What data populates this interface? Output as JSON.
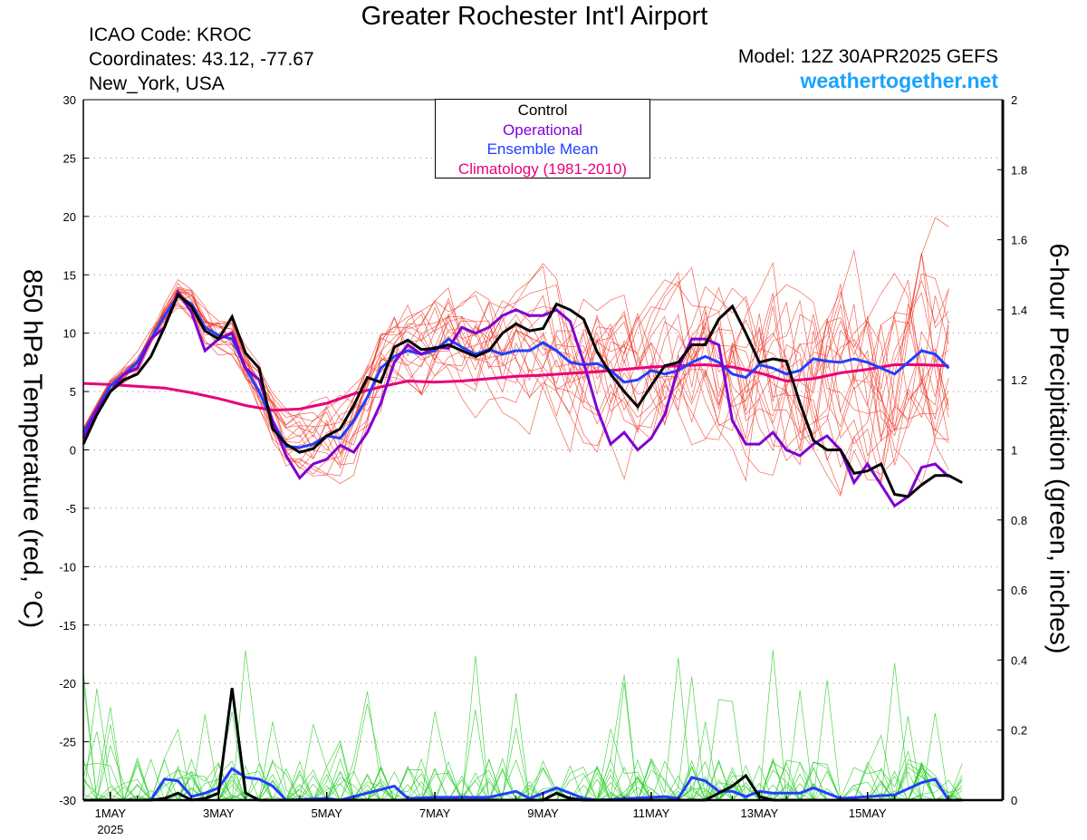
{
  "title": "Greater Rochester Int'l Airport",
  "station": {
    "icao": "ICAO Code: KROC",
    "coords": "Coordinates: 43.12, -77.67",
    "location": "New_York, USA"
  },
  "model": "Model: 12Z 30APR2025 GEFS",
  "website": "weathertogether.net",
  "colors": {
    "control": "#000000",
    "operational": "#8000d0",
    "mean": "#2040ff",
    "climatology": "#e8007a",
    "members_temp": "#ee3322",
    "members_precip": "#22cc22",
    "website": "#1aa3ff"
  },
  "chart_data": {
    "type": "line",
    "title": "Greater Rochester Int'l Airport",
    "ylabel_left": "850 hPa Temperature (red, °C)",
    "ylabel_right": "6-hour Precipitation (green, inches)",
    "ylim_left": [
      -30,
      30
    ],
    "ylim_right": [
      0,
      2
    ],
    "x_range_days": [
      -0.5,
      16.5
    ],
    "x_ticks": [
      {
        "day": 0,
        "label": "1MAY",
        "sublabel": "2025"
      },
      {
        "day": 2,
        "label": "3MAY"
      },
      {
        "day": 4,
        "label": "5MAY"
      },
      {
        "day": 6,
        "label": "7MAY"
      },
      {
        "day": 8,
        "label": "9MAY"
      },
      {
        "day": 10,
        "label": "11MAY"
      },
      {
        "day": 12,
        "label": "13MAY"
      },
      {
        "day": 14,
        "label": "15MAY"
      }
    ],
    "yticks_left": [
      30,
      25,
      20,
      15,
      10,
      5,
      0,
      -5,
      -10,
      -15,
      -20,
      -25,
      -30
    ],
    "yticks_right": [
      "2",
      "1.8",
      "1.6",
      "1.4",
      "1.2",
      "1",
      "0.8",
      "0.6",
      "0.4",
      "0.2",
      "0"
    ],
    "legend": {
      "position": "top-center",
      "entries": [
        {
          "label": "Control",
          "color": "#000000"
        },
        {
          "label": "Operational",
          "color": "#8000d0"
        },
        {
          "label": "Ensemble Mean",
          "color": "#2040ff"
        },
        {
          "label": "Climatology (1981-2010)",
          "color": "#e8007a"
        }
      ]
    },
    "grid": "dotted horizontal",
    "series_temp": {
      "control": [
        [
          -0.5,
          0.5
        ],
        [
          -0.25,
          3
        ],
        [
          0,
          5
        ],
        [
          0.25,
          6
        ],
        [
          0.5,
          6.5
        ],
        [
          0.75,
          8
        ],
        [
          1,
          10.5
        ],
        [
          1.25,
          13.3
        ],
        [
          1.5,
          12.3
        ],
        [
          1.75,
          10.2
        ],
        [
          2,
          9.5
        ],
        [
          2.25,
          11.4
        ],
        [
          2.5,
          8.3
        ],
        [
          2.75,
          7
        ],
        [
          3,
          1.8
        ],
        [
          3.25,
          0.5
        ],
        [
          3.5,
          -0.2
        ],
        [
          3.75,
          0.1
        ],
        [
          4,
          1.2
        ],
        [
          4.25,
          1.8
        ],
        [
          4.5,
          3.8
        ],
        [
          4.75,
          6.2
        ],
        [
          5,
          5.8
        ],
        [
          5.25,
          8.8
        ],
        [
          5.5,
          9.4
        ],
        [
          5.75,
          8.6
        ],
        [
          6,
          8.7
        ],
        [
          6.25,
          9
        ],
        [
          6.5,
          8.5
        ],
        [
          6.75,
          8
        ],
        [
          7,
          8.5
        ],
        [
          7.25,
          10
        ],
        [
          7.5,
          10.8
        ],
        [
          7.75,
          10.2
        ],
        [
          8,
          10.4
        ],
        [
          8.25,
          12.5
        ],
        [
          8.5,
          12
        ],
        [
          8.75,
          11.2
        ],
        [
          9,
          8.4
        ],
        [
          9.25,
          6.5
        ],
        [
          9.5,
          5
        ],
        [
          9.75,
          3.7
        ],
        [
          10,
          5.5
        ],
        [
          10.25,
          7.2
        ],
        [
          10.5,
          7.5
        ],
        [
          10.75,
          9
        ],
        [
          11,
          9
        ],
        [
          11.25,
          11.2
        ],
        [
          11.5,
          12.3
        ],
        [
          11.75,
          10
        ],
        [
          12,
          7.5
        ],
        [
          12.25,
          7.8
        ],
        [
          12.5,
          7.6
        ],
        [
          12.75,
          4
        ],
        [
          13,
          0.8
        ],
        [
          13.25,
          0
        ],
        [
          13.5,
          0
        ],
        [
          13.75,
          -2
        ],
        [
          14,
          -1.8
        ],
        [
          14.25,
          -1.2
        ],
        [
          14.5,
          -3.8
        ],
        [
          14.75,
          -4
        ],
        [
          15,
          -3
        ],
        [
          15.25,
          -2.2
        ],
        [
          15.5,
          -2.2
        ],
        [
          15.75,
          -2.8
        ]
      ],
      "operational": [
        [
          -0.5,
          1
        ],
        [
          -0.25,
          3.5
        ],
        [
          0,
          5
        ],
        [
          0.25,
          6.5
        ],
        [
          0.5,
          7
        ],
        [
          0.75,
          9.5
        ],
        [
          1,
          10.5
        ],
        [
          1.25,
          13.5
        ],
        [
          1.5,
          11.8
        ],
        [
          1.75,
          8.5
        ],
        [
          2,
          9.5
        ],
        [
          2.25,
          10
        ],
        [
          2.5,
          7
        ],
        [
          2.75,
          6
        ],
        [
          3,
          2.5
        ],
        [
          3.25,
          -0.5
        ],
        [
          3.5,
          -2.4
        ],
        [
          3.75,
          -1.2
        ],
        [
          4,
          -0.8
        ],
        [
          4.25,
          0.4
        ],
        [
          4.5,
          -0.2
        ],
        [
          4.75,
          1.5
        ],
        [
          5,
          4
        ],
        [
          5.25,
          7.5
        ],
        [
          5.5,
          9
        ],
        [
          5.75,
          8.2
        ],
        [
          6,
          8.8
        ],
        [
          6.25,
          8.7
        ],
        [
          6.5,
          10.5
        ],
        [
          6.75,
          10
        ],
        [
          7,
          10.5
        ],
        [
          7.25,
          11.5
        ],
        [
          7.5,
          12
        ],
        [
          7.75,
          11.5
        ],
        [
          8,
          11.5
        ],
        [
          8.25,
          12
        ],
        [
          8.5,
          11
        ],
        [
          8.75,
          7.5
        ],
        [
          9,
          3.5
        ],
        [
          9.25,
          0.5
        ],
        [
          9.5,
          1.5
        ],
        [
          9.75,
          0
        ],
        [
          10,
          1
        ],
        [
          10.25,
          3
        ],
        [
          10.5,
          7
        ],
        [
          10.75,
          9.5
        ],
        [
          11,
          9.5
        ],
        [
          11.25,
          9
        ],
        [
          11.5,
          2.5
        ],
        [
          11.75,
          0.5
        ],
        [
          12,
          0.5
        ],
        [
          12.25,
          1.5
        ],
        [
          12.5,
          0
        ],
        [
          12.75,
          -0.5
        ],
        [
          13,
          0.5
        ],
        [
          13.25,
          1.2
        ],
        [
          13.5,
          0
        ],
        [
          13.75,
          -2.8
        ],
        [
          14,
          -1.2
        ],
        [
          14.25,
          -3
        ],
        [
          14.5,
          -4.8
        ],
        [
          14.75,
          -4
        ],
        [
          15,
          -1.5
        ],
        [
          15.25,
          -1.2
        ],
        [
          15.5,
          -2.3
        ]
      ],
      "ensemble_mean": [
        [
          -0.5,
          1.5
        ],
        [
          -0.25,
          3.5
        ],
        [
          0,
          5.5
        ],
        [
          0.25,
          6.5
        ],
        [
          0.5,
          7.5
        ],
        [
          0.75,
          9.5
        ],
        [
          1,
          11.5
        ],
        [
          1.25,
          13.2
        ],
        [
          1.5,
          12.5
        ],
        [
          1.75,
          10.5
        ],
        [
          2,
          9.8
        ],
        [
          2.25,
          9.5
        ],
        [
          2.5,
          7
        ],
        [
          2.75,
          5
        ],
        [
          3,
          2.5
        ],
        [
          3.25,
          0.3
        ],
        [
          3.5,
          0.2
        ],
        [
          3.75,
          0.5
        ],
        [
          4,
          1.2
        ],
        [
          4.25,
          1
        ],
        [
          4.5,
          2.5
        ],
        [
          4.75,
          4.5
        ],
        [
          5,
          7
        ],
        [
          5.25,
          8
        ],
        [
          5.5,
          8.5
        ],
        [
          5.75,
          8.2
        ],
        [
          6,
          8.5
        ],
        [
          6.25,
          9.5
        ],
        [
          6.5,
          8.8
        ],
        [
          6.75,
          8.2
        ],
        [
          7,
          8.6
        ],
        [
          7.25,
          8.2
        ],
        [
          7.5,
          8.5
        ],
        [
          7.75,
          8.5
        ],
        [
          8,
          9.2
        ],
        [
          8.25,
          8.5
        ],
        [
          8.5,
          7.5
        ],
        [
          8.75,
          7.3
        ],
        [
          9,
          7.4
        ],
        [
          9.25,
          6.8
        ],
        [
          9.5,
          5.8
        ],
        [
          9.75,
          6
        ],
        [
          10,
          6.8
        ],
        [
          10.25,
          6.5
        ],
        [
          10.5,
          6.8
        ],
        [
          10.75,
          7.5
        ],
        [
          11,
          8
        ],
        [
          11.25,
          7.5
        ],
        [
          11.5,
          6.5
        ],
        [
          11.75,
          6.2
        ],
        [
          12,
          7.3
        ],
        [
          12.25,
          7
        ],
        [
          12.5,
          6.5
        ],
        [
          12.75,
          6.8
        ],
        [
          13,
          7.8
        ],
        [
          13.25,
          7.6
        ],
        [
          13.5,
          7.5
        ],
        [
          13.75,
          7.8
        ],
        [
          14,
          7.5
        ],
        [
          14.25,
          7
        ],
        [
          14.5,
          6.5
        ],
        [
          14.75,
          7.5
        ],
        [
          15,
          8.5
        ],
        [
          15.25,
          8.2
        ],
        [
          15.5,
          7
        ]
      ],
      "climatology": [
        [
          -0.5,
          5.7
        ],
        [
          0,
          5.6
        ],
        [
          1,
          5.3
        ],
        [
          1.5,
          4.9
        ],
        [
          2,
          4.4
        ],
        [
          2.5,
          3.8
        ],
        [
          3,
          3.4
        ],
        [
          3.5,
          3.5
        ],
        [
          4,
          4
        ],
        [
          4.5,
          4.8
        ],
        [
          5,
          5.4
        ],
        [
          5.5,
          5.9
        ],
        [
          6,
          5.8
        ],
        [
          6.5,
          5.9
        ],
        [
          7,
          6.1
        ],
        [
          7.5,
          6.3
        ],
        [
          8,
          6.4
        ],
        [
          9,
          6.7
        ],
        [
          9.5,
          6.9
        ],
        [
          10,
          7.1
        ],
        [
          10.5,
          7.2
        ],
        [
          11,
          7.3
        ],
        [
          11.5,
          7.1
        ],
        [
          12,
          6.6
        ],
        [
          12.5,
          5.9
        ],
        [
          13,
          6.1
        ],
        [
          13.5,
          6.6
        ],
        [
          14,
          6.9
        ],
        [
          14.5,
          7.3
        ],
        [
          15,
          7.3
        ],
        [
          15.5,
          7.2
        ]
      ]
    },
    "series_precip": {
      "control": [
        [
          -0.5,
          0
        ],
        [
          0.75,
          0
        ],
        [
          1,
          0.005
        ],
        [
          1.25,
          0.02
        ],
        [
          1.5,
          0
        ],
        [
          1.75,
          0.005
        ],
        [
          2,
          0.02
        ],
        [
          2.25,
          0.32
        ],
        [
          2.5,
          0.02
        ],
        [
          2.75,
          0
        ],
        [
          3,
          0
        ],
        [
          8,
          0
        ],
        [
          8.25,
          0.02
        ],
        [
          8.5,
          0.005
        ],
        [
          8.75,
          0
        ],
        [
          11,
          0
        ],
        [
          11.25,
          0.02
        ],
        [
          11.5,
          0.04
        ],
        [
          11.75,
          0.07
        ],
        [
          12,
          0.01
        ],
        [
          12.25,
          0
        ],
        [
          15.75,
          0
        ]
      ],
      "ensemble_mean": [
        [
          -0.5,
          0
        ],
        [
          0.5,
          0
        ],
        [
          0.75,
          0
        ],
        [
          1,
          0.06
        ],
        [
          1.25,
          0.055
        ],
        [
          1.5,
          0.01
        ],
        [
          1.75,
          0.02
        ],
        [
          2,
          0.035
        ],
        [
          2.25,
          0.09
        ],
        [
          2.5,
          0.065
        ],
        [
          2.75,
          0.06
        ],
        [
          3,
          0.04
        ],
        [
          3.25,
          0
        ],
        [
          4,
          0.005
        ],
        [
          4.25,
          0
        ],
        [
          5.25,
          0.04
        ],
        [
          5.5,
          0.005
        ],
        [
          6,
          0.008
        ],
        [
          7,
          0.008
        ],
        [
          7.5,
          0.025
        ],
        [
          7.75,
          0.005
        ],
        [
          8,
          0.02
        ],
        [
          8.25,
          0.035
        ],
        [
          8.5,
          0.02
        ],
        [
          8.75,
          0.005
        ],
        [
          9,
          0
        ],
        [
          10.25,
          0.01
        ],
        [
          10.5,
          0.005
        ],
        [
          10.75,
          0.065
        ],
        [
          11,
          0.055
        ],
        [
          11.25,
          0.025
        ],
        [
          11.5,
          0.025
        ],
        [
          11.75,
          0.01
        ],
        [
          12,
          0.025
        ],
        [
          12.25,
          0.02
        ],
        [
          12.75,
          0.02
        ],
        [
          13,
          0.035
        ],
        [
          13.25,
          0.02
        ],
        [
          13.5,
          0.005
        ],
        [
          14.5,
          0.015
        ],
        [
          15,
          0.05
        ],
        [
          15.25,
          0.06
        ],
        [
          15.5,
          0
        ]
      ]
    }
  }
}
